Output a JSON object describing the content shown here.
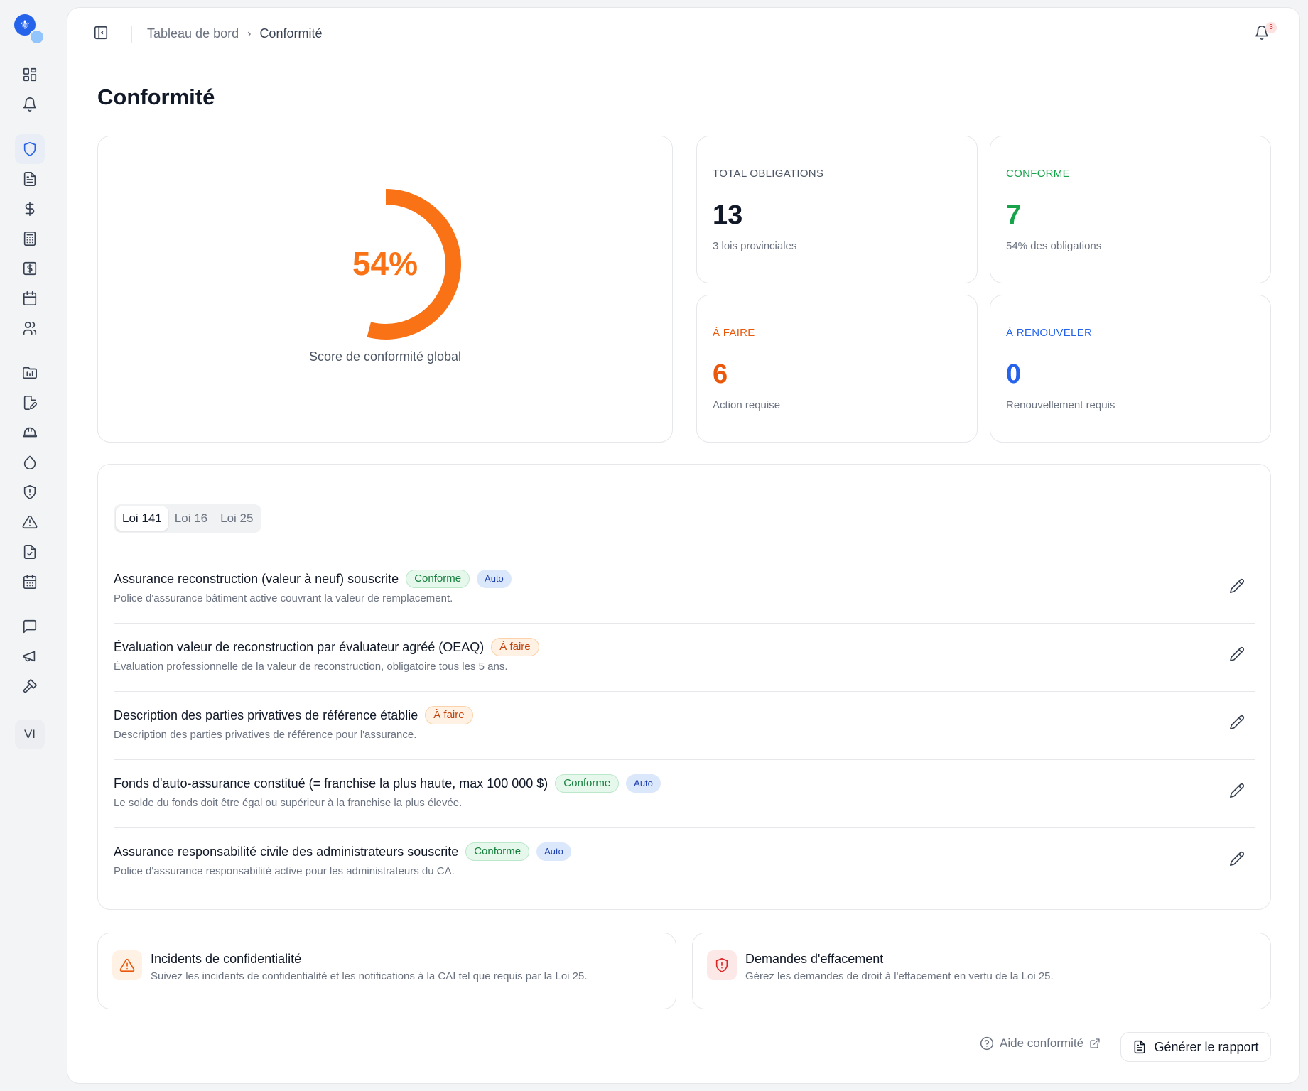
{
  "breadcrumb": {
    "home": "Tableau de bord",
    "separator": "›",
    "current": "Conformité"
  },
  "notifications": {
    "count": "3",
    "icon": "bell-icon"
  },
  "page": {
    "title": "Conformité"
  },
  "sidebar": {
    "avatar_initials": "VI",
    "items": [
      {
        "icon": "dashboard-grid-icon",
        "active": false
      },
      {
        "icon": "bell-icon",
        "active": false
      },
      {
        "icon": "shield-icon",
        "active": true
      },
      {
        "icon": "document-icon",
        "active": false
      },
      {
        "icon": "dollar-icon",
        "active": false
      },
      {
        "icon": "calculator-icon",
        "active": false
      },
      {
        "icon": "invoice-icon",
        "active": false
      },
      {
        "icon": "calendar-icon",
        "active": false
      },
      {
        "icon": "users-icon",
        "active": false
      },
      {
        "icon": "folder-icon",
        "active": false
      },
      {
        "icon": "file-edit-icon",
        "active": false
      },
      {
        "icon": "hard-hat-icon",
        "active": false
      },
      {
        "icon": "droplet-icon",
        "active": false
      },
      {
        "icon": "shield-alert-icon",
        "active": false
      },
      {
        "icon": "warning-icon",
        "active": false
      },
      {
        "icon": "file-check-icon",
        "active": false
      },
      {
        "icon": "calendar-grid-icon",
        "active": false
      },
      {
        "icon": "message-icon",
        "active": false
      },
      {
        "icon": "megaphone-icon",
        "active": false
      },
      {
        "icon": "hammer-icon",
        "active": false
      }
    ]
  },
  "score": {
    "value_text": "54%",
    "fraction": 0.54,
    "label": "Score de conformité global",
    "color": "#f97316"
  },
  "stats": {
    "total": {
      "label": "Total obligations",
      "value": "13",
      "desc": "3 lois provinciales",
      "color": "#111827",
      "label_color": "#4b5563"
    },
    "conforme": {
      "label": "Conforme",
      "value": "7",
      "desc": "54% des obligations",
      "color": "#16a34a",
      "label_color": "#16a34a"
    },
    "a_faire": {
      "label": "À faire",
      "value": "6",
      "desc": "Action requise",
      "color": "#ea580c",
      "label_color": "#ea580c"
    },
    "a_renouveler": {
      "label": "À renouveler",
      "value": "0",
      "desc": "Renouvellement requis",
      "color": "#2563eb",
      "label_color": "#2563eb"
    }
  },
  "tabs": [
    {
      "label": "Loi 141",
      "active": true
    },
    {
      "label": "Loi 16",
      "active": false
    },
    {
      "label": "Loi 25",
      "active": false
    }
  ],
  "obligations": [
    {
      "title": "Assurance reconstruction (valeur à neuf) souscrite",
      "status": "Conforme",
      "status_type": "ok",
      "auto": "Auto",
      "desc": "Police d'assurance bâtiment active couvrant la valeur de remplacement."
    },
    {
      "title": "Évaluation valeur de reconstruction par évaluateur agréé (OEAQ)",
      "status": "À faire",
      "status_type": "todo",
      "auto": "",
      "desc": "Évaluation professionnelle de la valeur de reconstruction, obligatoire tous les 5 ans."
    },
    {
      "title": "Description des parties privatives de référence établie",
      "status": "À faire",
      "status_type": "todo",
      "auto": "",
      "desc": "Description des parties privatives de référence pour l'assurance."
    },
    {
      "title": "Fonds d'auto-assurance constitué (= franchise la plus haute, max 100 000 $)",
      "status": "Conforme",
      "status_type": "ok",
      "auto": "Auto",
      "desc": "Le solde du fonds doit être égal ou supérieur à la franchise la plus élevée."
    },
    {
      "title": "Assurance responsabilité civile des administrateurs souscrite",
      "status": "Conforme",
      "status_type": "ok",
      "auto": "Auto",
      "desc": "Police d'assurance responsabilité active pour les administrateurs du CA."
    }
  ],
  "incidents": {
    "title": "Incidents de confidentialité",
    "desc": "Suivez les incidents de confidentialité et les notifications à la CAI tel que requis par la Loi 25."
  },
  "effacement": {
    "title": "Demandes d'effacement",
    "desc": "Gérez les demandes de droit à l'effacement en vertu de la Loi 25."
  },
  "footer": {
    "help_label": "Aide conformité",
    "report_label": "Générer le rapport"
  }
}
